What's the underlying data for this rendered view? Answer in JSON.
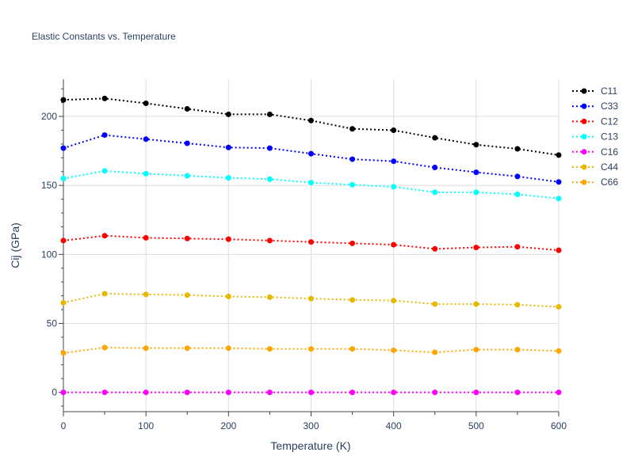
{
  "chart_data": {
    "type": "line",
    "title": "Elastic Constants vs. Temperature",
    "xlabel": "Temperature (K)",
    "ylabel": "Cij (GPa)",
    "xlim": [
      0,
      600
    ],
    "ylim": [
      -14,
      227
    ],
    "x_ticks": [
      0,
      100,
      200,
      300,
      400,
      500,
      600
    ],
    "y_ticks": [
      0,
      50,
      100,
      150,
      200
    ],
    "grid": true,
    "legend_position": "right",
    "line_style": "dotted",
    "markers": true,
    "x": [
      0,
      50,
      100,
      150,
      200,
      250,
      300,
      350,
      400,
      450,
      500,
      550,
      600
    ],
    "series": [
      {
        "name": "C11",
        "color": "#000000",
        "values": [
          212,
          213,
          209.5,
          205.5,
          201.5,
          201.5,
          197,
          191,
          190,
          184.5,
          179.5,
          176.5,
          172
        ]
      },
      {
        "name": "C33",
        "color": "#0000ff",
        "values": [
          177,
          186.5,
          183.5,
          180.5,
          177.5,
          177,
          173,
          169,
          167.5,
          163,
          159.5,
          156.5,
          152.5
        ]
      },
      {
        "name": "C12",
        "color": "#ff0000",
        "values": [
          110,
          113.5,
          112,
          111.5,
          111,
          110,
          109,
          108,
          107,
          104,
          105,
          105.5,
          103
        ]
      },
      {
        "name": "C13",
        "color": "#00ffff",
        "values": [
          155,
          160.5,
          158.5,
          157,
          155.5,
          154.5,
          152,
          150.5,
          149,
          145,
          145,
          143.5,
          140.5
        ]
      },
      {
        "name": "C16",
        "color": "#ff00ff",
        "values": [
          0,
          0,
          0,
          0,
          0,
          0,
          0,
          0,
          0,
          0,
          0,
          0,
          0
        ]
      },
      {
        "name": "C44",
        "color": "#e6b800",
        "values": [
          65,
          71.5,
          71,
          70.5,
          69.5,
          69,
          68,
          67,
          66.5,
          64,
          64,
          63.5,
          62
        ]
      },
      {
        "name": "C66",
        "color": "#ffa500",
        "values": [
          28.5,
          32.5,
          32,
          32,
          32,
          31.5,
          31.5,
          31.5,
          30.5,
          29,
          31,
          31,
          30
        ]
      }
    ]
  }
}
